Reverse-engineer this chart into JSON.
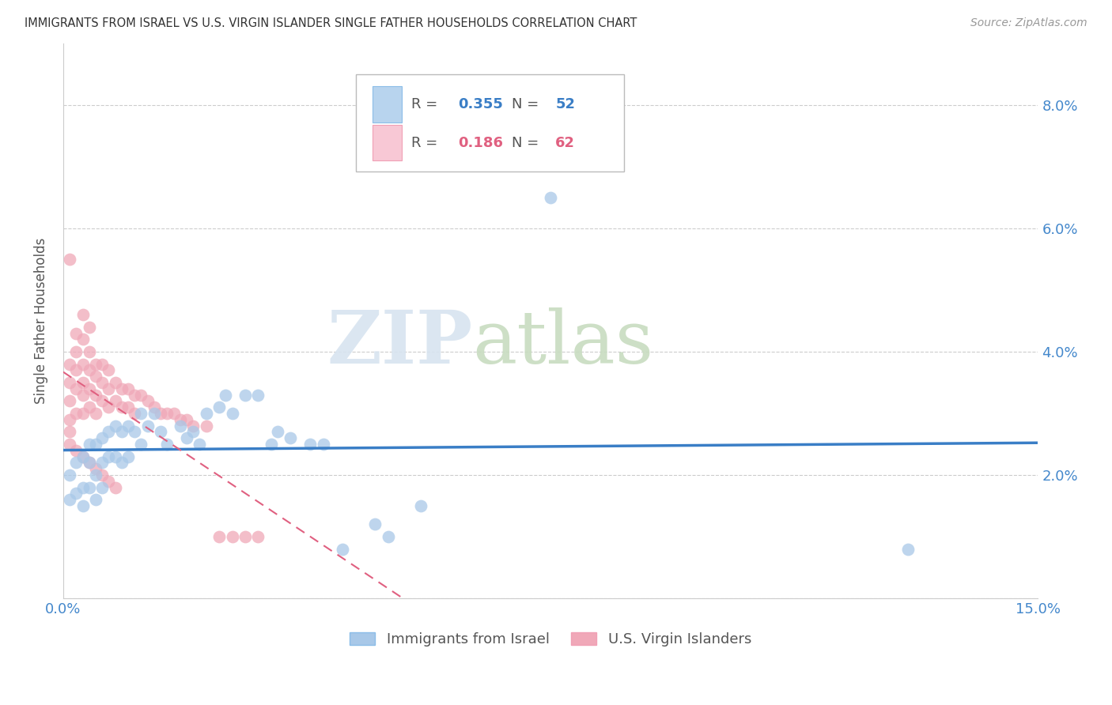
{
  "title": "IMMIGRANTS FROM ISRAEL VS U.S. VIRGIN ISLANDER SINGLE FATHER HOUSEHOLDS CORRELATION CHART",
  "source": "Source: ZipAtlas.com",
  "ylabel": "Single Father Households",
  "xlim": [
    0.0,
    0.15
  ],
  "ylim": [
    0.0,
    0.09
  ],
  "blue_R": 0.355,
  "blue_N": 52,
  "pink_R": 0.186,
  "pink_N": 62,
  "blue_color": "#A8C8E8",
  "pink_color": "#F0A8B8",
  "blue_line_color": "#3A7EC6",
  "pink_line_color": "#E06080",
  "blue_scatter_x": [
    0.001,
    0.001,
    0.002,
    0.002,
    0.003,
    0.003,
    0.003,
    0.004,
    0.004,
    0.004,
    0.005,
    0.005,
    0.005,
    0.006,
    0.006,
    0.006,
    0.007,
    0.007,
    0.008,
    0.008,
    0.009,
    0.009,
    0.01,
    0.01,
    0.011,
    0.012,
    0.012,
    0.013,
    0.014,
    0.015,
    0.016,
    0.018,
    0.019,
    0.02,
    0.021,
    0.022,
    0.024,
    0.025,
    0.026,
    0.028,
    0.03,
    0.032,
    0.033,
    0.035,
    0.038,
    0.04,
    0.043,
    0.048,
    0.05,
    0.055,
    0.075,
    0.13
  ],
  "blue_scatter_y": [
    0.02,
    0.016,
    0.022,
    0.017,
    0.023,
    0.018,
    0.015,
    0.025,
    0.022,
    0.018,
    0.025,
    0.02,
    0.016,
    0.026,
    0.022,
    0.018,
    0.027,
    0.023,
    0.028,
    0.023,
    0.027,
    0.022,
    0.028,
    0.023,
    0.027,
    0.03,
    0.025,
    0.028,
    0.03,
    0.027,
    0.025,
    0.028,
    0.026,
    0.027,
    0.025,
    0.03,
    0.031,
    0.033,
    0.03,
    0.033,
    0.033,
    0.025,
    0.027,
    0.026,
    0.025,
    0.025,
    0.008,
    0.012,
    0.01,
    0.015,
    0.065,
    0.008
  ],
  "pink_scatter_x": [
    0.001,
    0.001,
    0.001,
    0.001,
    0.001,
    0.001,
    0.002,
    0.002,
    0.002,
    0.002,
    0.002,
    0.003,
    0.003,
    0.003,
    0.003,
    0.003,
    0.003,
    0.004,
    0.004,
    0.004,
    0.004,
    0.004,
    0.005,
    0.005,
    0.005,
    0.005,
    0.006,
    0.006,
    0.006,
    0.007,
    0.007,
    0.007,
    0.008,
    0.008,
    0.009,
    0.009,
    0.01,
    0.01,
    0.011,
    0.011,
    0.012,
    0.013,
    0.014,
    0.015,
    0.016,
    0.017,
    0.018,
    0.019,
    0.02,
    0.022,
    0.024,
    0.026,
    0.028,
    0.03,
    0.001,
    0.002,
    0.003,
    0.004,
    0.005,
    0.006,
    0.007,
    0.008
  ],
  "pink_scatter_y": [
    0.055,
    0.038,
    0.035,
    0.032,
    0.029,
    0.027,
    0.043,
    0.04,
    0.037,
    0.034,
    0.03,
    0.046,
    0.042,
    0.038,
    0.035,
    0.033,
    0.03,
    0.044,
    0.04,
    0.037,
    0.034,
    0.031,
    0.038,
    0.036,
    0.033,
    0.03,
    0.038,
    0.035,
    0.032,
    0.037,
    0.034,
    0.031,
    0.035,
    0.032,
    0.034,
    0.031,
    0.034,
    0.031,
    0.033,
    0.03,
    0.033,
    0.032,
    0.031,
    0.03,
    0.03,
    0.03,
    0.029,
    0.029,
    0.028,
    0.028,
    0.01,
    0.01,
    0.01,
    0.01,
    0.025,
    0.024,
    0.023,
    0.022,
    0.021,
    0.02,
    0.019,
    0.018
  ],
  "watermark_zip": "ZIP",
  "watermark_atlas": "atlas",
  "watermark_color_zip": "#D0D8E8",
  "watermark_color_atlas": "#C8D8C0",
  "background_color": "#FFFFFF",
  "grid_color": "#CCCCCC",
  "title_color": "#333333",
  "axis_label_color": "#555555",
  "tick_color": "#4488CC",
  "legend_label_blue": "Immigrants from Israel",
  "legend_label_pink": "U.S. Virgin Islanders"
}
